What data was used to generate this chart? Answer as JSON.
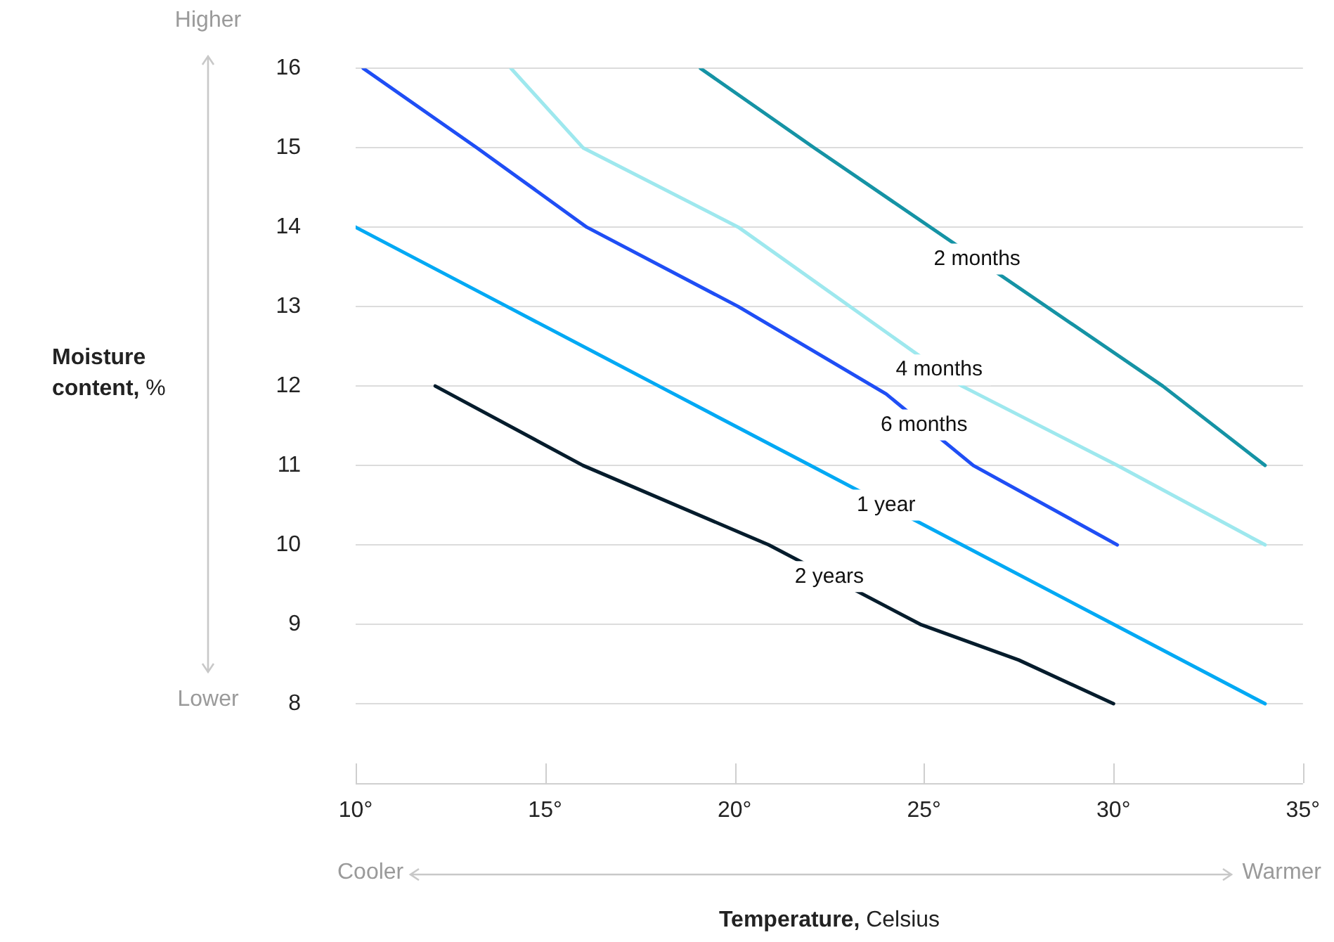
{
  "chart_data": {
    "type": "line",
    "xlabel": "Temperature, Celsius",
    "ylabel": "Moisture content, %",
    "annotations": [
      "Higher",
      "Lower",
      "Cooler",
      "Warmer"
    ],
    "xlim": [
      10,
      35
    ],
    "ylim": [
      7,
      16
    ],
    "xticks": [
      {
        "value": 10,
        "label": "10°"
      },
      {
        "value": 15,
        "label": "15°"
      },
      {
        "value": 20,
        "label": "20°"
      },
      {
        "value": 25,
        "label": "25°"
      },
      {
        "value": 30,
        "label": "30°"
      },
      {
        "value": 35,
        "label": "35°"
      }
    ],
    "yticks": [
      8,
      9,
      10,
      11,
      12,
      13,
      14,
      15,
      16
    ],
    "grid": "y",
    "legend": false,
    "marker": "none",
    "line_style": "solid",
    "series": [
      {
        "name": "2 months",
        "color": "#1593a5",
        "x": [
          19.1,
          22.1,
          31.3,
          34
        ],
        "values": [
          16,
          15,
          12,
          11
        ]
      },
      {
        "name": "4 months",
        "color": "#9ee8ee",
        "x": [
          14.1,
          16,
          20.1,
          26,
          30.1,
          34
        ],
        "values": [
          16,
          15,
          14,
          12,
          11,
          10
        ]
      },
      {
        "name": "6 months",
        "color": "#1f4ef5",
        "x": [
          10.2,
          13.2,
          16.1,
          20.1,
          24,
          26.3,
          30.1
        ],
        "values": [
          16,
          15,
          14,
          13,
          11.9,
          11,
          10
        ]
      },
      {
        "name": "1 year",
        "color": "#00a9f4",
        "x": [
          10,
          14,
          18,
          22,
          26,
          30,
          34
        ],
        "values": [
          14,
          13,
          12,
          11,
          10,
          9,
          8
        ]
      },
      {
        "name": "2 years",
        "color": "#051c2c",
        "x": [
          12.1,
          16,
          20.9,
          24.9,
          27.5,
          30
        ],
        "values": [
          12,
          11,
          10,
          9,
          8.55,
          8
        ]
      }
    ]
  }
}
